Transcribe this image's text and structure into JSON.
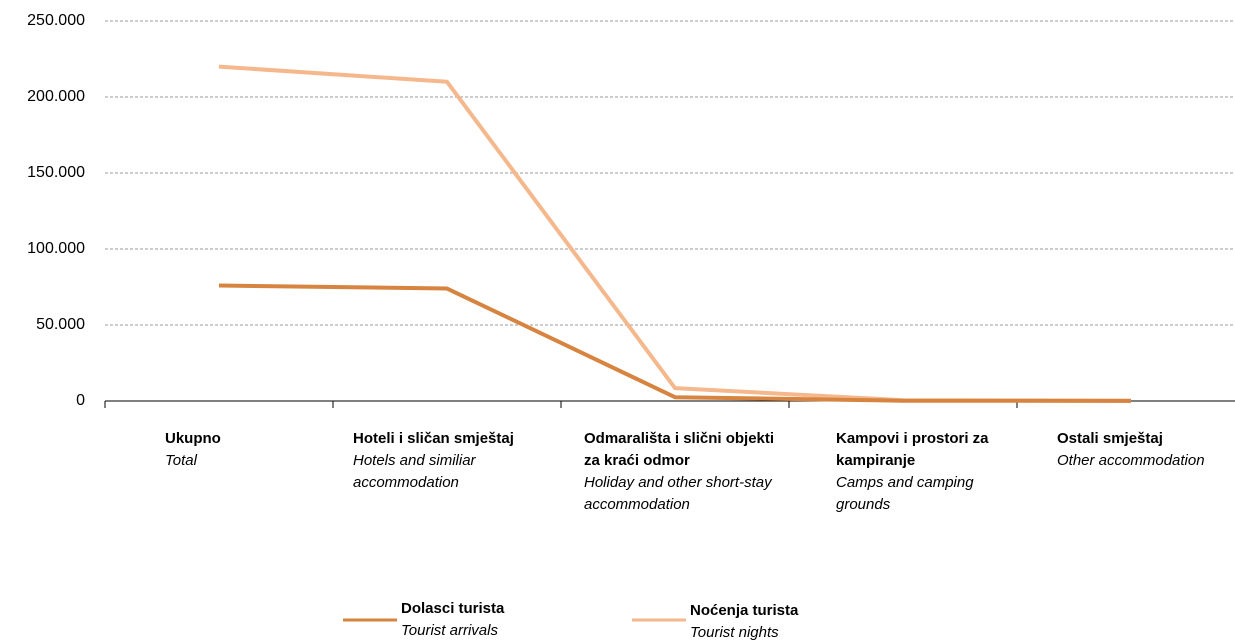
{
  "chart_data": {
    "type": "line",
    "categories": [
      "Ukupno",
      "Hoteli i sličan smještaj",
      "Odmarališta i slični objekti za kraći odmor",
      "Kampovi i prostori za kampiranje",
      "Ostali smještaj"
    ],
    "categories_en": [
      "Total",
      "Hotels and similiar accommodation",
      "Holiday and other short-stay accommodation",
      "Camps and camping grounds",
      "Other accommodation"
    ],
    "series": [
      {
        "name": "Dolasci turista",
        "name_en": "Tourist arrivals",
        "color": "#d6843f",
        "values": [
          76000,
          74000,
          2500,
          200,
          100
        ]
      },
      {
        "name": "Noćenja turista",
        "name_en": "Tourist nights",
        "color": "#f4b88c",
        "values": [
          220000,
          210000,
          8500,
          500,
          200
        ]
      }
    ],
    "ylim": [
      0,
      250000
    ],
    "yticks": [
      0,
      {
        "value": 50000,
        "label": "50.000"
      },
      {
        "value": 100000,
        "label": "100.000"
      },
      {
        "value": 150000,
        "label": "150.000"
      },
      {
        "value": 200000,
        "label": "200.000"
      },
      {
        "value": 250000,
        "label": "250.000"
      }
    ],
    "grid": true
  }
}
